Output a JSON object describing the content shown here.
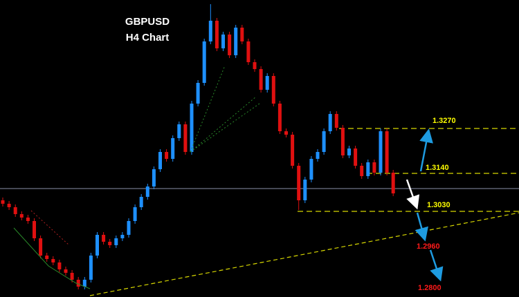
{
  "chart_data": {
    "type": "candlestick",
    "title": "GBPUSD",
    "subtitle": "H4 Chart",
    "ylim": [
      1.2782,
      1.3642
    ],
    "up_color": "#1e90ff",
    "down_color": "#e01010",
    "open": [
      1.3062,
      1.3052,
      1.3042,
      1.3022,
      1.3012,
      1.3002,
      1.2952,
      1.2902,
      1.2892,
      1.2882,
      1.2862,
      1.2852,
      1.2832,
      1.2812,
      1.2832,
      1.2902,
      1.2962,
      1.2942,
      1.2932,
      1.2952,
      1.2962,
      1.3002,
      1.3042,
      1.3072,
      1.3102,
      1.3152,
      1.3202,
      1.3182,
      1.3242,
      1.3282,
      1.3202,
      1.3342,
      1.3402,
      1.3522,
      1.3582,
      1.3502,
      1.3542,
      1.3482,
      1.3562,
      1.3522,
      1.3462,
      1.3442,
      1.3382,
      1.3422,
      1.3342,
      1.3262,
      1.3252,
      1.3162,
      1.3062,
      1.3122,
      1.3182,
      1.3202,
      1.3262,
      1.3312,
      1.3272,
      1.3192,
      1.3212,
      1.3162,
      1.3132,
      1.3172,
      1.3142,
      1.3262,
      1.3142
    ],
    "high": [
      1.307,
      1.306,
      1.305,
      1.303,
      1.302,
      1.301,
      1.296,
      1.291,
      1.29,
      1.289,
      1.287,
      1.286,
      1.284,
      1.284,
      1.291,
      1.297,
      1.297,
      1.295,
      1.296,
      1.297,
      1.301,
      1.305,
      1.308,
      1.311,
      1.316,
      1.321,
      1.321,
      1.325,
      1.329,
      1.329,
      1.335,
      1.341,
      1.353,
      1.363,
      1.359,
      1.355,
      1.355,
      1.357,
      1.357,
      1.353,
      1.347,
      1.345,
      1.343,
      1.343,
      1.335,
      1.327,
      1.326,
      1.317,
      1.313,
      1.319,
      1.321,
      1.327,
      1.332,
      1.332,
      1.328,
      1.322,
      1.322,
      1.317,
      1.318,
      1.318,
      1.327,
      1.327,
      1.315
    ],
    "low": [
      1.3044,
      1.3034,
      1.3014,
      1.3004,
      1.2994,
      1.2944,
      1.2894,
      1.2884,
      1.2874,
      1.2854,
      1.2844,
      1.2824,
      1.2804,
      1.2804,
      1.2824,
      1.2894,
      1.2934,
      1.2924,
      1.2924,
      1.2944,
      1.2954,
      1.2994,
      1.3034,
      1.3064,
      1.3094,
      1.3144,
      1.3174,
      1.3174,
      1.3234,
      1.3194,
      1.3194,
      1.3334,
      1.3394,
      1.3514,
      1.3494,
      1.3494,
      1.3474,
      1.3474,
      1.3514,
      1.3454,
      1.3434,
      1.3374,
      1.3374,
      1.3334,
      1.3254,
      1.3244,
      1.3154,
      1.3034,
      1.3054,
      1.3114,
      1.3174,
      1.3194,
      1.3254,
      1.3264,
      1.3184,
      1.3184,
      1.3154,
      1.3124,
      1.3124,
      1.3134,
      1.3134,
      1.3134,
      1.3074
    ],
    "close": [
      1.3052,
      1.3042,
      1.3022,
      1.3012,
      1.3002,
      1.2952,
      1.2902,
      1.2892,
      1.2882,
      1.2862,
      1.2852,
      1.2832,
      1.2812,
      1.2832,
      1.2902,
      1.2962,
      1.2942,
      1.2932,
      1.2952,
      1.2962,
      1.3002,
      1.3042,
      1.3072,
      1.3102,
      1.3152,
      1.3202,
      1.3182,
      1.3242,
      1.3282,
      1.3202,
      1.3342,
      1.3402,
      1.3522,
      1.3582,
      1.3502,
      1.3542,
      1.3482,
      1.3562,
      1.3522,
      1.3462,
      1.3442,
      1.3382,
      1.3422,
      1.3342,
      1.3262,
      1.3252,
      1.3162,
      1.3062,
      1.3122,
      1.3182,
      1.3202,
      1.3262,
      1.3312,
      1.3272,
      1.3192,
      1.3212,
      1.3162,
      1.3132,
      1.3172,
      1.3142,
      1.3262,
      1.3142,
      1.3082
    ],
    "current_price": 1.3096,
    "trendline": [
      1.2786,
      1.3026
    ],
    "levels": [
      {
        "value": 1.327,
        "label": "1.3270",
        "color": "#ffff00",
        "line": true
      },
      {
        "value": 1.314,
        "label": "1.3140",
        "color": "#ffff00",
        "line": true
      },
      {
        "value": 1.303,
        "label": "1.3030",
        "color": "#ffff00",
        "line": true
      },
      {
        "value": 1.296,
        "label": "1.2960",
        "color": "#ff1a1a",
        "line": false
      },
      {
        "value": 1.28,
        "label": "1.2800",
        "color": "#ff1a1a",
        "line": false
      }
    ]
  }
}
